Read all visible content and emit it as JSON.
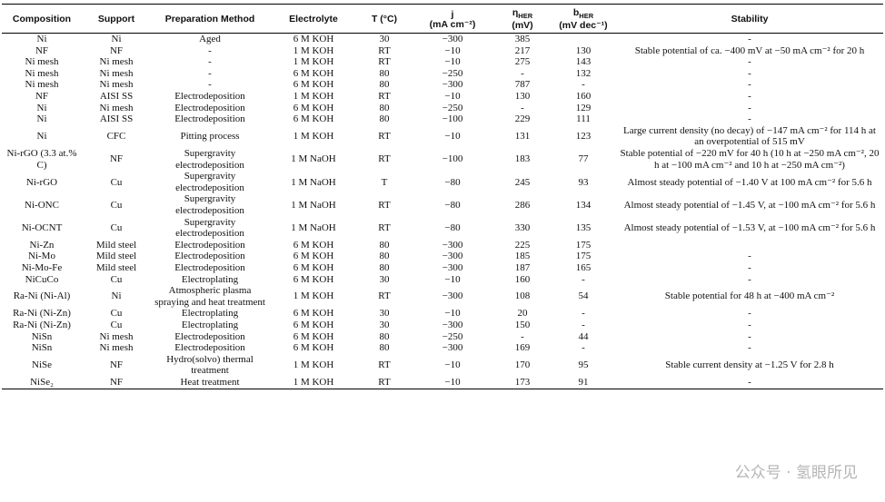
{
  "table": {
    "headers": [
      {
        "text": "Composition"
      },
      {
        "text": "Support"
      },
      {
        "text": "Preparation Method"
      },
      {
        "text": "Electrolyte"
      },
      {
        "text": "T (°C)"
      },
      {
        "text": "j",
        "line2": "(mA cm⁻²)"
      },
      {
        "text": "η",
        "sub": "HER",
        "line2": "(mV)"
      },
      {
        "text": "b",
        "sub": "HER",
        "line2": "(mV dec⁻¹)"
      },
      {
        "text": "Stability"
      }
    ],
    "rows": [
      [
        "Ni",
        "Ni",
        "Aged",
        "6 M KOH",
        "30",
        "−300",
        "385",
        null,
        "-"
      ],
      [
        "NF",
        "NF",
        "-",
        "1 M KOH",
        "RT",
        "−10",
        "217",
        "130",
        "Stable potential of ca. −400 mV at −50 mA cm⁻² for 20 h"
      ],
      [
        "Ni mesh",
        "Ni mesh",
        "-",
        "1 M KOH",
        "RT",
        "−10",
        "275",
        "143",
        "-"
      ],
      [
        "Ni mesh",
        "Ni mesh",
        "-",
        "6 M KOH",
        "80",
        "−250",
        "-",
        "132",
        "-"
      ],
      [
        "Ni mesh",
        "Ni mesh",
        "-",
        "6 M KOH",
        "80",
        "−300",
        "787",
        "-",
        "-"
      ],
      [
        "NF",
        "AISI SS",
        "Electrodeposition",
        "1 M KOH",
        "RT",
        "−10",
        "130",
        "160",
        "-"
      ],
      [
        "Ni",
        "Ni mesh",
        "Electrodeposition",
        "6 M KOH",
        "80",
        "−250",
        "-",
        "129",
        "-"
      ],
      [
        "Ni",
        "AISI SS",
        "Electrodeposition",
        "6 M KOH",
        "80",
        "−100",
        "229",
        "111",
        "-"
      ],
      [
        "Ni",
        "CFC",
        "Pitting process",
        "1 M KOH",
        "RT",
        "−10",
        "131",
        "123",
        "Large current density (no decay) of −147 mA cm⁻² for 114 h at an overpotential of 515 mV"
      ],
      [
        "Ni-rGO (3.3 at.% C)",
        "NF",
        "Supergravity electrodeposition",
        "1 M NaOH",
        "RT",
        "−100",
        "183",
        "77",
        "Stable potential of −220 mV for 40 h (10 h at −250 mA cm⁻², 20 h at −100 mA cm⁻² and 10 h at −250 mA cm⁻²)"
      ],
      [
        "Ni-rGO",
        "Cu",
        "Supergravity electrodeposition",
        "1 M NaOH",
        "T",
        "−80",
        "245",
        "93",
        "Almost steady potential of −1.40 V at 100 mA cm⁻² for 5.6 h"
      ],
      [
        "Ni-ONC",
        "Cu",
        "Supergravity electrodeposition",
        "1 M NaOH",
        "RT",
        "−80",
        "286",
        "134",
        "Almost steady potential of −1.45 V, at −100 mA cm⁻² for 5.6 h"
      ],
      [
        "Ni-OCNT",
        "Cu",
        "Supergravity electrodeposition",
        "1 M NaOH",
        "RT",
        "−80",
        "330",
        "135",
        "Almost steady potential of −1.53 V, at −100 mA cm⁻² for 5.6 h"
      ],
      [
        "Ni-Zn",
        "Mild steel",
        "Electrodeposition",
        "6 M KOH",
        "80",
        "−300",
        "225",
        "175",
        null
      ],
      [
        "Ni-Mo",
        "Mild steel",
        "Electrodeposition",
        "6 M KOH",
        "80",
        "−300",
        "185",
        "175",
        "-"
      ],
      [
        "Ni-Mo-Fe",
        "Mild steel",
        "Electrodeposition",
        "6 M KOH",
        "80",
        "−300",
        "187",
        "165",
        "-"
      ],
      [
        "NiCuCo",
        "Cu",
        "Electroplating",
        "6 M KOH",
        "30",
        "−10",
        "160",
        "-",
        "-"
      ],
      [
        "Ra-Ni (Ni-Al)",
        "Ni",
        "Atmospheric plasma spraying and heat treatment",
        "1 M KOH",
        "RT",
        "−300",
        "108",
        "54",
        "Stable potential for 48 h at −400 mA cm⁻²"
      ],
      [
        "Ra-Ni (Ni-Zn)",
        "Cu",
        "Electroplating",
        "6 M KOH",
        "30",
        "−10",
        "20",
        "-",
        "-"
      ],
      [
        "Ra-Ni (Ni-Zn)",
        "Cu",
        "Electroplating",
        "6 M KOH",
        "30",
        "−300",
        "150",
        "-",
        "-"
      ],
      [
        "NiSn",
        "Ni mesh",
        "Electrodeposition",
        "6 M KOH",
        "80",
        "−250",
        "-",
        "44",
        "-"
      ],
      [
        "NiSn",
        "Ni mesh",
        "Electrodeposition",
        "6 M KOH",
        "80",
        "−300",
        "169",
        "-",
        "-"
      ],
      [
        "NiSe",
        "NF",
        "Hydro(solvo) thermal treatment",
        "1 M KOH",
        "RT",
        "−10",
        "170",
        "95",
        "Stable current density at −1.25 V for 2.8 h"
      ],
      [
        "NiSe₂",
        "NF",
        "Heat treatment",
        "1 M KOH",
        "RT",
        "−10",
        "173",
        "91",
        "-"
      ]
    ]
  },
  "watermark": "公众号 · 氢眼所见"
}
